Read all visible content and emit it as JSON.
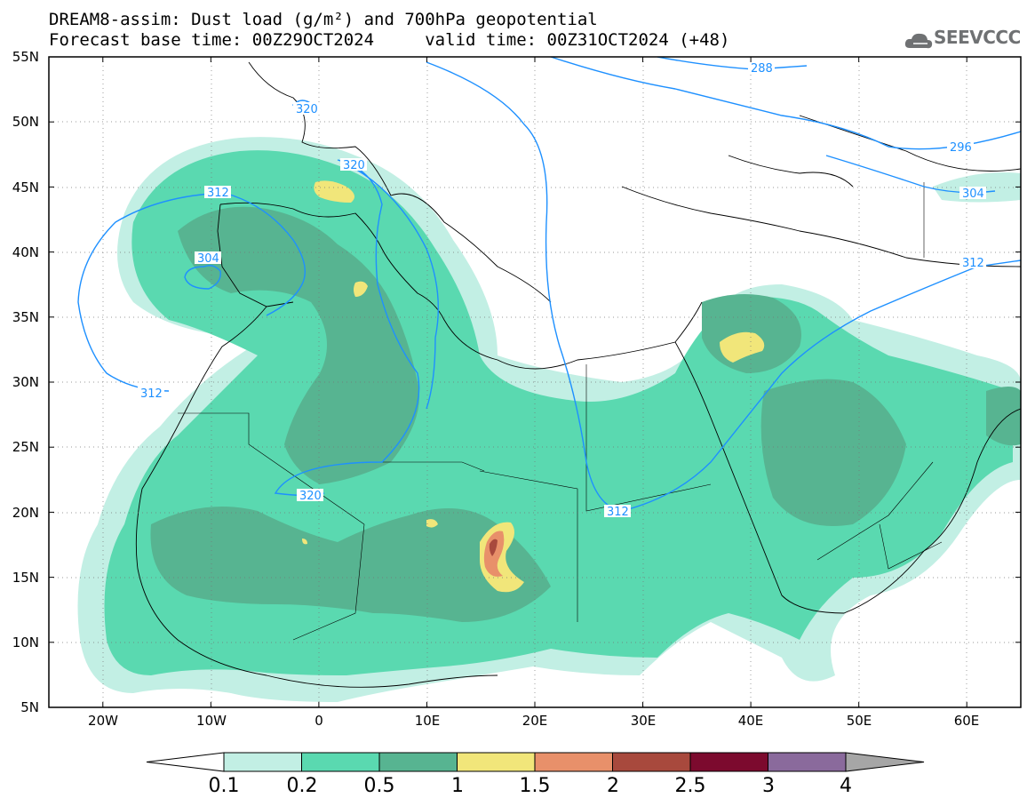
{
  "title": {
    "line1": "DREAM8-assim: Dust load (g/m²) and 700hPa geopotential",
    "line2": "Forecast base time: 00Z29OCT2024     valid time: 00Z31OCT2024 (+48)"
  },
  "logo": {
    "text": "SEEVCCC",
    "icon": "cloud-icon"
  },
  "axes": {
    "lat_labels": [
      "55N",
      "50N",
      "45N",
      "40N",
      "35N",
      "30N",
      "25N",
      "20N",
      "15N",
      "10N",
      "5N"
    ],
    "lon_labels": [
      "20W",
      "10W",
      "0",
      "10E",
      "20E",
      "30E",
      "40E",
      "50E",
      "60E"
    ],
    "lat_range": [
      5,
      55
    ],
    "lon_range": [
      -25,
      65
    ]
  },
  "contours": {
    "color": "#1e90ff",
    "labels": [
      "288",
      "296",
      "304",
      "312",
      "312",
      "312",
      "312",
      "320",
      "320",
      "320",
      "304"
    ]
  },
  "colorbar": {
    "labels": [
      "0.1",
      "0.2",
      "0.5",
      "1",
      "1.5",
      "2",
      "2.5",
      "3",
      "4"
    ],
    "colors": [
      "#c2efe4",
      "#5ad9b0",
      "#57b491",
      "#f1e67a",
      "#e8906a",
      "#a8493d",
      "#7c0a2e",
      "#8a6a9c"
    ],
    "under_color": "#ffffff",
    "over_color": "#a6a6a6"
  }
}
